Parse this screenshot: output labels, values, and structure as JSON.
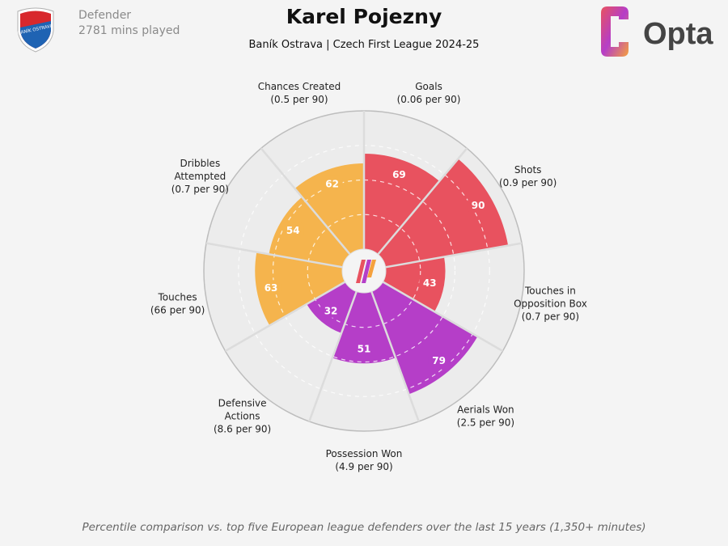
{
  "header": {
    "position": "Defender",
    "minutes": "2781 mins played",
    "title": "Karel Pojezny",
    "subtitle": "Baník Ostrava | Czech First League 2024-25"
  },
  "badge": {
    "text": "BANÍK OSTRAVA",
    "icon": "club-crest-icon",
    "colors": {
      "red": "#d8282d",
      "blue": "#1f63b3"
    }
  },
  "brand": {
    "name": "Opta",
    "icon": "opta-logo-icon"
  },
  "footnote": "Percentile comparison vs. top five European league defenders over the last 15 years (1,350+ minutes)",
  "colors": {
    "attacking": "#e8525f",
    "defending": "#b53ec8",
    "possession": "#f5b44d",
    "background": "#f4f4f4",
    "circle_fill": "#ececec"
  },
  "chart_data": {
    "type": "pizza",
    "range": [
      0,
      100
    ],
    "categories": [
      {
        "label": [
          "Goals",
          "(0.06 per 90)"
        ],
        "value": 69,
        "group": "attacking"
      },
      {
        "label": [
          "Shots",
          "(0.9 per 90)"
        ],
        "value": 90,
        "group": "attacking"
      },
      {
        "label": [
          "Touches in",
          "Opposition Box",
          "(0.7 per 90)"
        ],
        "value": 43,
        "group": "attacking"
      },
      {
        "label": [
          "Aerials Won",
          "(2.5 per 90)"
        ],
        "value": 79,
        "group": "defending"
      },
      {
        "label": [
          "Possession Won",
          "(4.9 per 90)"
        ],
        "value": 51,
        "group": "defending"
      },
      {
        "label": [
          "Defensive",
          "Actions",
          "(8.6 per 90)"
        ],
        "value": 32,
        "group": "defending"
      },
      {
        "label": [
          "Touches",
          "(66 per 90)"
        ],
        "value": 63,
        "group": "possession"
      },
      {
        "label": [
          "Dribbles",
          "Attempted",
          "(0.7 per 90)"
        ],
        "value": 54,
        "group": "possession"
      },
      {
        "label": [
          "Chances Created",
          "(0.5 per 90)"
        ],
        "value": 62,
        "group": "possession"
      }
    ]
  }
}
